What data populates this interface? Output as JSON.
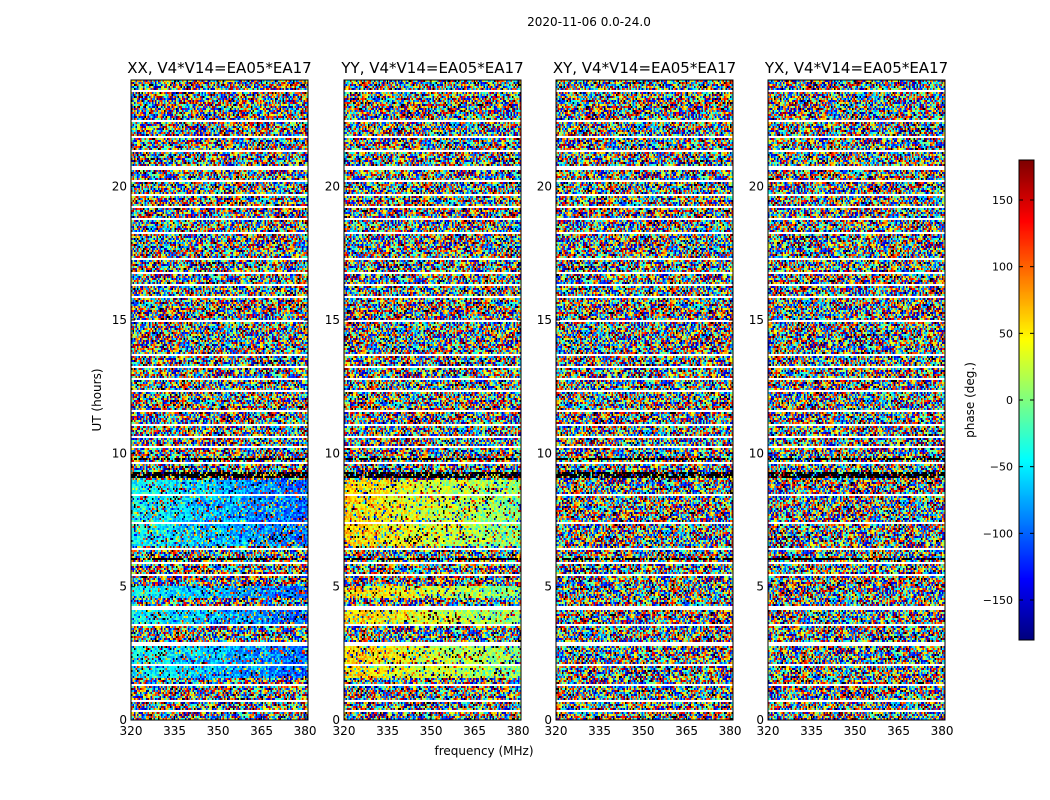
{
  "chart_data": {
    "type": "heatmap",
    "suptitle": "2020-11-06 0.0-24.0",
    "xlabel": "frequency (MHz)",
    "ylabel": "UT (hours)",
    "xlim": [
      320,
      381
    ],
    "ylim": [
      0,
      24
    ],
    "xticks": [
      "320",
      "335",
      "350",
      "365",
      "380"
    ],
    "xtick_values": [
      320,
      335,
      350,
      365,
      380
    ],
    "yticks": [
      "0",
      "5",
      "10",
      "15",
      "20"
    ],
    "ytick_values": [
      0,
      5,
      10,
      15,
      20
    ],
    "colormap": "jet",
    "colorbar": {
      "label": "phase (deg.)",
      "range": [
        -180,
        180
      ],
      "ticks": [
        "−150",
        "−100",
        "−50",
        "0",
        "50",
        "100",
        "150"
      ],
      "tick_values": [
        -150,
        -100,
        -50,
        0,
        50,
        100,
        150
      ]
    },
    "panels": [
      {
        "title": "XX, V4*V14=EA05*EA17",
        "coherent_phase_deg": -40
      },
      {
        "title": "YY, V4*V14=EA05*EA17",
        "coherent_phase_deg": 60
      },
      {
        "title": "XY, V4*V14=EA05*EA17",
        "coherent_phase_deg": null
      },
      {
        "title": "YX, V4*V14=EA05*EA17",
        "coherent_phase_deg": null
      }
    ],
    "flagged_time_ranges_hours": [
      [
        0.3,
        0.35
      ],
      [
        0.7,
        0.75
      ],
      [
        1.3,
        1.35
      ],
      [
        1.55,
        1.6
      ],
      [
        2.05,
        2.1
      ],
      [
        2.8,
        2.9
      ],
      [
        3.55,
        3.6
      ],
      [
        4.15,
        4.25
      ],
      [
        4.55,
        4.6
      ],
      [
        5.0,
        5.05
      ],
      [
        5.4,
        5.5
      ],
      [
        5.85,
        5.95
      ],
      [
        6.4,
        6.45
      ],
      [
        6.95,
        7.0
      ],
      [
        7.35,
        7.4
      ],
      [
        7.7,
        7.75
      ],
      [
        8.4,
        8.45
      ],
      [
        8.9,
        8.95
      ],
      [
        9.6,
        9.65
      ],
      [
        10.2,
        10.25
      ],
      [
        10.6,
        10.65
      ],
      [
        11.05,
        11.1
      ],
      [
        11.55,
        11.65
      ],
      [
        12.3,
        12.35
      ],
      [
        12.75,
        12.85
      ],
      [
        13.2,
        13.25
      ],
      [
        13.65,
        13.7
      ],
      [
        14.0,
        14.05
      ],
      [
        14.45,
        14.5
      ],
      [
        14.95,
        15.0
      ],
      [
        15.35,
        15.4
      ],
      [
        15.85,
        15.9
      ],
      [
        16.3,
        16.35
      ],
      [
        16.75,
        16.8
      ],
      [
        17.25,
        17.3
      ],
      [
        17.75,
        17.8
      ],
      [
        18.25,
        18.3
      ],
      [
        18.75,
        18.8
      ],
      [
        19.2,
        19.25
      ],
      [
        19.65,
        19.7
      ],
      [
        20.15,
        20.25
      ],
      [
        20.65,
        20.75
      ],
      [
        21.3,
        21.35
      ],
      [
        21.85,
        21.9
      ],
      [
        22.45,
        22.5
      ],
      [
        23.0,
        23.05
      ],
      [
        23.55,
        23.6
      ]
    ],
    "dark_time_ranges_hours": [
      [
        6.0,
        6.1
      ],
      [
        9.05,
        9.3
      ],
      [
        9.75,
        9.8
      ]
    ]
  }
}
